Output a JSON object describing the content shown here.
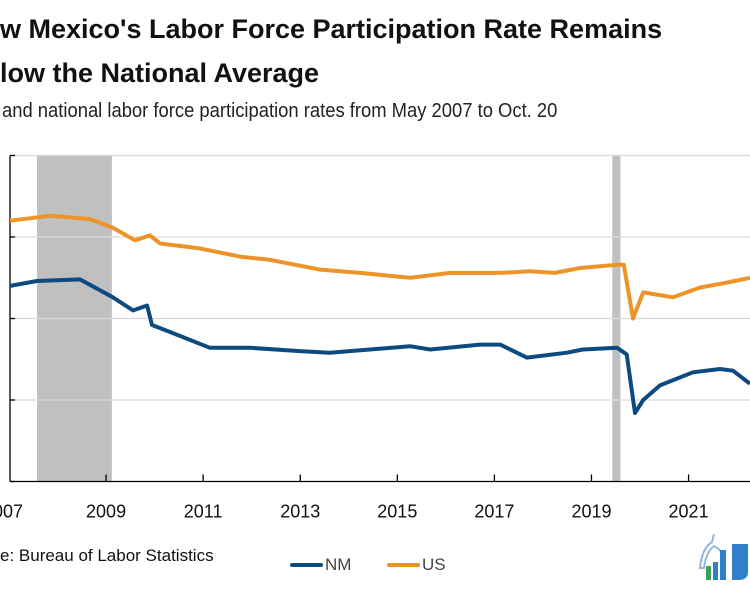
{
  "chart_data": {
    "type": "line",
    "title_line1": "w Mexico's Labor Force Participation  Rate Remains",
    "title_line2": "low the National Average",
    "subtitle": "and national labor force participation rates from May 2007 to Oct. 20",
    "source": "e: Bureau of Labor Statistics",
    "xlabel": "",
    "ylabel": "",
    "xlim": [
      2007.36,
      2022.75
    ],
    "ylim": [
      50,
      70
    ],
    "gridlines": [
      50,
      55,
      60,
      65,
      70
    ],
    "x_ticks": [
      {
        "label": "007",
        "t": 2007.32
      },
      {
        "label": "2009",
        "t": 2009.35
      },
      {
        "label": "2011",
        "t": 2011.36
      },
      {
        "label": "2013",
        "t": 2013.37
      },
      {
        "label": "2015",
        "t": 2015.38
      },
      {
        "label": "2017",
        "t": 2017.39
      },
      {
        "label": "2019",
        "t": 2019.4
      },
      {
        "label": "2021",
        "t": 2021.41
      }
    ],
    "recessions": [
      [
        2007.92,
        2009.47
      ],
      [
        2019.83,
        2020.0
      ]
    ],
    "legend_position": "bottom",
    "series": [
      {
        "name": "NM",
        "color": "#0d4a7f",
        "points": [
          [
            2007.36,
            62.0
          ],
          [
            2007.92,
            62.3
          ],
          [
            2008.81,
            62.4
          ],
          [
            2009.49,
            61.3
          ],
          [
            2009.91,
            60.5
          ],
          [
            2010.2,
            60.8
          ],
          [
            2010.3,
            59.6
          ],
          [
            2010.74,
            59.1
          ],
          [
            2011.5,
            58.2
          ],
          [
            2012.33,
            58.2
          ],
          [
            2013.36,
            58.0
          ],
          [
            2013.98,
            57.9
          ],
          [
            2014.81,
            58.1
          ],
          [
            2015.64,
            58.3
          ],
          [
            2016.06,
            58.1
          ],
          [
            2017.09,
            58.4
          ],
          [
            2017.51,
            58.4
          ],
          [
            2018.06,
            57.6
          ],
          [
            2018.89,
            57.9
          ],
          [
            2019.22,
            58.1
          ],
          [
            2019.93,
            58.2
          ],
          [
            2020.13,
            57.8
          ],
          [
            2020.3,
            54.2
          ],
          [
            2020.47,
            55.0
          ],
          [
            2020.82,
            55.9
          ],
          [
            2021.5,
            56.7
          ],
          [
            2022.06,
            56.9
          ],
          [
            2022.33,
            56.8
          ],
          [
            2022.68,
            56.0
          ]
        ]
      },
      {
        "name": "US",
        "color": "#ed9428",
        "points": [
          [
            2007.36,
            66.0
          ],
          [
            2008.19,
            66.3
          ],
          [
            2009.02,
            66.1
          ],
          [
            2009.47,
            65.6
          ],
          [
            2009.95,
            64.8
          ],
          [
            2010.26,
            65.1
          ],
          [
            2010.47,
            64.6
          ],
          [
            2011.29,
            64.3
          ],
          [
            2012.12,
            63.8
          ],
          [
            2012.74,
            63.6
          ],
          [
            2013.78,
            63.0
          ],
          [
            2014.61,
            62.8
          ],
          [
            2015.64,
            62.5
          ],
          [
            2016.47,
            62.8
          ],
          [
            2017.51,
            62.8
          ],
          [
            2018.13,
            62.9
          ],
          [
            2018.64,
            62.8
          ],
          [
            2019.16,
            63.1
          ],
          [
            2019.93,
            63.3
          ],
          [
            2020.07,
            63.3
          ],
          [
            2020.26,
            60.0
          ],
          [
            2020.47,
            61.6
          ],
          [
            2021.09,
            61.3
          ],
          [
            2021.65,
            61.9
          ],
          [
            2022.2,
            62.2
          ],
          [
            2022.68,
            62.5
          ]
        ]
      }
    ]
  }
}
